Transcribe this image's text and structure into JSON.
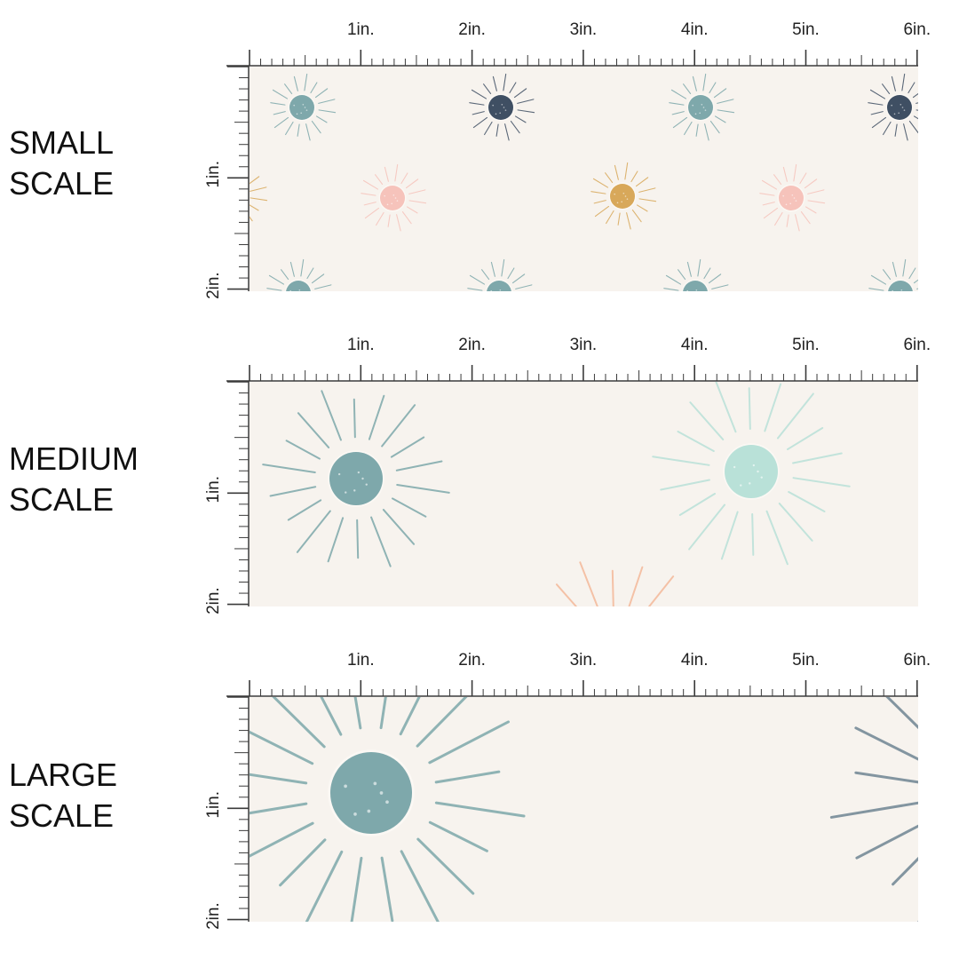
{
  "colors": {
    "fabric_bg": "#f7f3ee",
    "ruler_ink": "#3a3a3a",
    "label_ink": "#111111",
    "sun_teal": "#7ea8ab",
    "sun_navy": "#3f4f63",
    "sun_pink": "#f6c3bb",
    "sun_mustard": "#d8a85a",
    "sun_mint": "#b9e1d8",
    "sun_peach": "#f4b99a",
    "sun_slate": "#6f8593"
  },
  "ruler": {
    "top_ticks": [
      "1in.",
      "2in.",
      "3in.",
      "4in.",
      "5in.",
      "6in."
    ],
    "side_ticks": [
      "1in.",
      "2in."
    ]
  },
  "panels": [
    {
      "id": "small",
      "label_line1": "SMALL",
      "label_line2": "SCALE",
      "suns": [
        {
          "name": "teal-sun",
          "color": "sun_teal"
        },
        {
          "name": "navy-sun",
          "color": "sun_navy"
        },
        {
          "name": "teal-sun",
          "color": "sun_teal"
        },
        {
          "name": "navy-sun",
          "color": "sun_navy"
        },
        {
          "name": "pink-sun",
          "color": "sun_pink"
        },
        {
          "name": "mustard-sun",
          "color": "sun_mustard"
        },
        {
          "name": "pink-sun",
          "color": "sun_pink"
        }
      ]
    },
    {
      "id": "medium",
      "label_line1": "MEDIUM",
      "label_line2": "SCALE",
      "suns": [
        {
          "name": "teal-sun",
          "color": "sun_teal"
        },
        {
          "name": "mint-sun",
          "color": "sun_mint"
        },
        {
          "name": "peach-sun-rays",
          "color": "sun_peach"
        }
      ]
    },
    {
      "id": "large",
      "label_line1": "LARGE",
      "label_line2": "SCALE",
      "suns": [
        {
          "name": "teal-sun",
          "color": "sun_teal"
        },
        {
          "name": "slate-sun-rays",
          "color": "sun_slate"
        }
      ]
    }
  ]
}
